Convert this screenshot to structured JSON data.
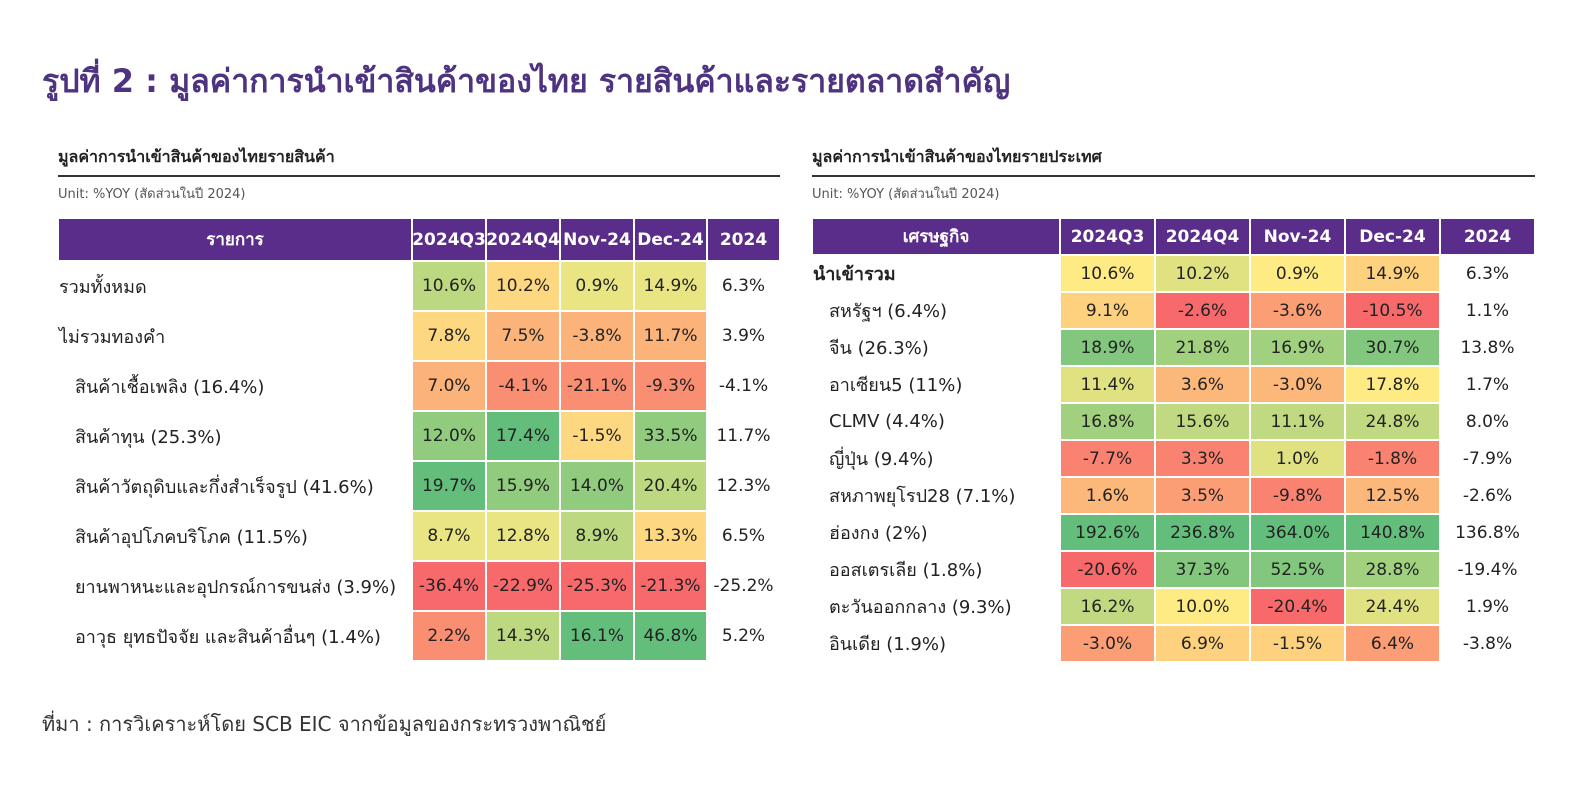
{
  "title": "รูปที่ 2 : มูลค่าการนำเข้าสินค้าของไทย รายสินค้าและรายตลาดสำคัญ",
  "left": {
    "subtitle": "มูลค่าการนำเข้าสินค้าของไทยรายสินค้า",
    "unit": "Unit: %YOY (สัดส่วนในปี 2024)",
    "header": [
      "รายการ",
      "2024Q3",
      "2024Q4",
      "Nov-24",
      "Dec-24",
      "2024"
    ],
    "rows": [
      {
        "label": "รวมทั้งหมด",
        "cells": [
          "10.6%",
          "10.2%",
          "0.9%",
          "14.9%",
          "6.3%"
        ]
      },
      {
        "label": "ไม่รวมทองคำ",
        "cells": [
          "7.8%",
          "7.5%",
          "-3.8%",
          "11.7%",
          "3.9%"
        ]
      },
      {
        "label": "สินค้าเชื้อเพลิง (16.4%)",
        "cells": [
          "7.0%",
          "-4.1%",
          "-21.1%",
          "-9.3%",
          "-4.1%"
        ]
      },
      {
        "label": "สินค้าทุน (25.3%)",
        "cells": [
          "12.0%",
          "17.4%",
          "-1.5%",
          "33.5%",
          "11.7%"
        ]
      },
      {
        "label": "สินค้าวัตถุดิบและกึ่งสำเร็จรูป (41.6%)",
        "cells": [
          "19.7%",
          "15.9%",
          "14.0%",
          "20.4%",
          "12.3%"
        ]
      },
      {
        "label": "สินค้าอุปโภคบริโภค (11.5%)",
        "cells": [
          "8.7%",
          "12.8%",
          "8.9%",
          "13.3%",
          "6.5%"
        ]
      },
      {
        "label": "ยานพาหนะและอุปกรณ์การขนส่ง (3.9%)",
        "cells": [
          "-36.4%",
          "-22.9%",
          "-25.3%",
          "-21.3%",
          "-25.2%"
        ]
      },
      {
        "label": "อาวุธ ยุทธปัจจัย และสินค้าอื่นๆ (1.4%)",
        "cells": [
          "2.2%",
          "14.3%",
          "16.1%",
          "46.8%",
          "5.2%"
        ]
      }
    ]
  },
  "right": {
    "subtitle": "มูลค่าการนำเข้าสินค้าของไทยรายประเทศ",
    "unit": "Unit: %YOY (สัดส่วนในปี 2024)",
    "header": [
      "เศรษฐกิจ",
      "2024Q3",
      "2024Q4",
      "Nov-24",
      "Dec-24",
      "2024"
    ],
    "rows": [
      {
        "label": "นำเข้ารวม",
        "cells": [
          "10.6%",
          "10.2%",
          "0.9%",
          "14.9%",
          "6.3%"
        ]
      },
      {
        "label": "สหรัฐฯ (6.4%)",
        "cells": [
          "9.1%",
          "-2.6%",
          "-3.6%",
          "-10.5%",
          "1.1%"
        ]
      },
      {
        "label": "จีน (26.3%)",
        "cells": [
          "18.9%",
          "21.8%",
          "16.9%",
          "30.7%",
          "13.8%"
        ]
      },
      {
        "label": "อาเซียน5 (11%)",
        "cells": [
          "11.4%",
          "3.6%",
          "-3.0%",
          "17.8%",
          "1.7%"
        ]
      },
      {
        "label": "CLMV (4.4%)",
        "cells": [
          "16.8%",
          "15.6%",
          "11.1%",
          "24.8%",
          "8.0%"
        ]
      },
      {
        "label": "ญี่ปุ่น (9.4%)",
        "cells": [
          "-7.7%",
          "3.3%",
          "1.0%",
          "-1.8%",
          "-7.9%"
        ]
      },
      {
        "label": "สหภาพยุโรป28 (7.1%)",
        "cells": [
          "1.6%",
          "3.5%",
          "-9.8%",
          "12.5%",
          "-2.6%"
        ]
      },
      {
        "label": "ฮ่องกง (2%)",
        "cells": [
          "192.6%",
          "236.8%",
          "364.0%",
          "140.8%",
          "136.8%"
        ]
      },
      {
        "label": "ออสเตรเลีย (1.8%)",
        "cells": [
          "-20.6%",
          "37.3%",
          "52.5%",
          "28.8%",
          "-19.4%"
        ]
      },
      {
        "label": "ตะวันออกกลาง (9.3%)",
        "cells": [
          "16.2%",
          "10.0%",
          "-20.4%",
          "24.4%",
          "1.9%"
        ]
      },
      {
        "label": "อินเดีย (1.9%)",
        "cells": [
          "-3.0%",
          "6.9%",
          "-1.5%",
          "6.4%",
          "-3.8%"
        ]
      }
    ]
  },
  "source": "ที่มา : การวิเคราะห์โดย SCB EIC จากข้อมูลของกระทรวงพาณิชย์"
}
